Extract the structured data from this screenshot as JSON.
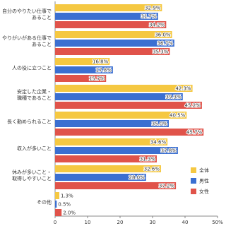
{
  "chart_data": {
    "type": "bar",
    "orientation": "horizontal",
    "categories": [
      "自分のやりたい仕事で\nあること",
      "やりがいがある仕事で\nあること",
      "人の役に立つこと",
      "安定した企業・\n職種であること",
      "長く勤められること",
      "収入が多いこと",
      "休みが多いこと・\n取得しやすいこと",
      "その他"
    ],
    "series": [
      {
        "name": "全体",
        "color": "#f5c842",
        "values": [
          32.9,
          36.0,
          16.8,
          42.3,
          40.5,
          34.6,
          32.6,
          1.3
        ],
        "value_labels": [
          "32.9%",
          "36.0%",
          "16.8%",
          "42.3%",
          "40.5%",
          "34.6%",
          "32.6%",
          "1.3%"
        ]
      },
      {
        "name": "男性",
        "color": "#3b6fd1",
        "values": [
          31.7,
          36.7,
          17.8,
          39.3,
          35.0,
          37.8,
          28.0,
          0.5
        ],
        "value_labels": [
          "31.7%",
          "36.7%",
          "17.8%",
          "39.3%",
          "35.0%",
          "37.8%",
          "28.0%",
          "0.5%"
        ]
      },
      {
        "name": "女性",
        "color": "#e0534a",
        "values": [
          34.2,
          35.3,
          15.7,
          45.2,
          45.7,
          31.3,
          37.2,
          2.0
        ],
        "value_labels": [
          "34.2%",
          "35.3%",
          "15.7%",
          "45.2%",
          "45.7%",
          "31.3%",
          "37.2%",
          "2.0%"
        ]
      }
    ],
    "xlim": [
      0,
      50
    ],
    "xticks": [
      0,
      10,
      20,
      30,
      40,
      {
        "value": 50,
        "label": "50%"
      }
    ],
    "legend": "lower-right",
    "grid": false
  }
}
